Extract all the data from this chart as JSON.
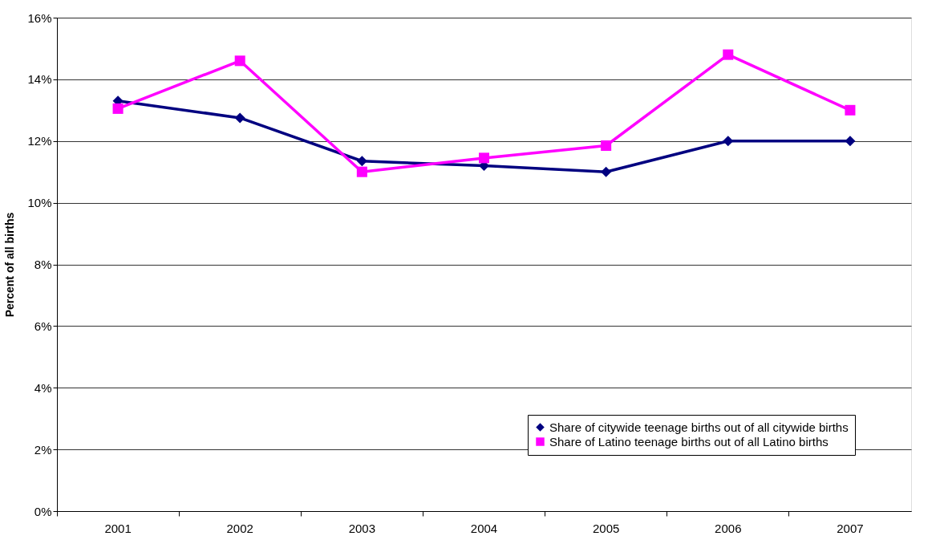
{
  "chart_data": {
    "type": "line",
    "ylabel": "Percent of all births",
    "categories": [
      "2001",
      "2002",
      "2003",
      "2004",
      "2005",
      "2006",
      "2007"
    ],
    "series": [
      {
        "name": "Share of citywide teenage births out of all citywide births",
        "color": "#000080",
        "marker": "diamond",
        "values": [
          13.3,
          12.75,
          11.35,
          11.2,
          11.0,
          12.0,
          12.0
        ]
      },
      {
        "name": "Share of Latino teenage births out of all Latino births",
        "color": "#ff00ff",
        "marker": "square",
        "values": [
          13.05,
          14.6,
          11.0,
          11.45,
          11.85,
          14.8,
          13.0
        ]
      }
    ],
    "ylim": [
      0,
      16
    ],
    "yticks": [
      {
        "value": 0,
        "label": "0%"
      },
      {
        "value": 2,
        "label": "2%"
      },
      {
        "value": 4,
        "label": "4%"
      },
      {
        "value": 6,
        "label": "6%"
      },
      {
        "value": 8,
        "label": "8%"
      },
      {
        "value": 10,
        "label": "10%"
      },
      {
        "value": 12,
        "label": "12%"
      },
      {
        "value": 14,
        "label": "14%"
      },
      {
        "value": 16,
        "label": "16%"
      }
    ],
    "grid": "y",
    "legend": "bottom right"
  }
}
